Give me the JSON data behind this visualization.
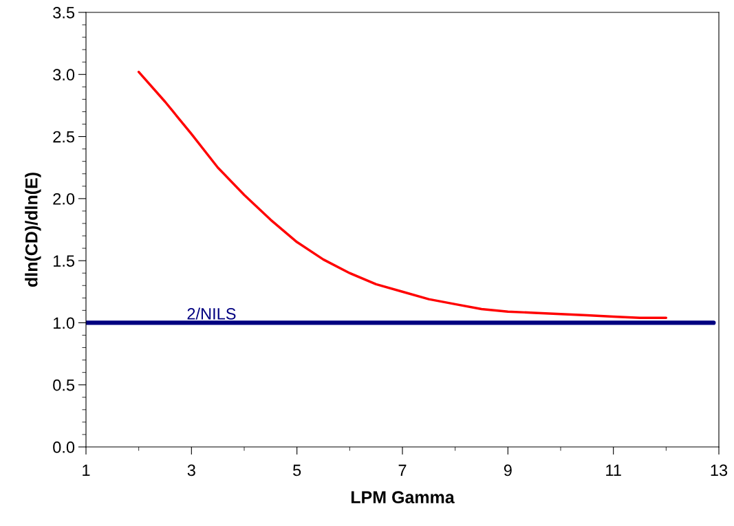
{
  "chart_data": {
    "type": "line",
    "xlabel": "LPM Gamma",
    "ylabel": "dln(CD)/dln(E)",
    "xlim": [
      1,
      13
    ],
    "ylim": [
      0,
      3.5
    ],
    "xticks": [
      1,
      {
        "value": 2,
        "label": null
      },
      3,
      {
        "value": 4,
        "label": null
      },
      5,
      {
        "value": 6,
        "label": null
      },
      7,
      {
        "value": 8,
        "label": null
      },
      9,
      {
        "value": 10,
        "label": null
      },
      11,
      {
        "value": 12,
        "label": null
      },
      13
    ],
    "yticks": [
      {
        "value": 0,
        "label": "0.0"
      },
      {
        "value": 0.1,
        "label": null
      },
      {
        "value": 0.2,
        "label": null
      },
      {
        "value": 0.3,
        "label": null
      },
      {
        "value": 0.4,
        "label": null
      },
      {
        "value": 0.5,
        "label": "0.5"
      },
      {
        "value": 0.6,
        "label": null
      },
      {
        "value": 0.7,
        "label": null
      },
      {
        "value": 0.8,
        "label": null
      },
      {
        "value": 0.9,
        "label": null
      },
      {
        "value": 1.0,
        "label": "1.0"
      },
      {
        "value": 1.1,
        "label": null
      },
      {
        "value": 1.2,
        "label": null
      },
      {
        "value": 1.3,
        "label": null
      },
      {
        "value": 1.4,
        "label": null
      },
      {
        "value": 1.5,
        "label": "1.5"
      },
      {
        "value": 1.6,
        "label": null
      },
      {
        "value": 1.7,
        "label": null
      },
      {
        "value": 1.8,
        "label": null
      },
      {
        "value": 1.9,
        "label": null
      },
      {
        "value": 2.0,
        "label": "2.0"
      },
      {
        "value": 2.1,
        "label": null
      },
      {
        "value": 2.2,
        "label": null
      },
      {
        "value": 2.3,
        "label": null
      },
      {
        "value": 2.4,
        "label": null
      },
      {
        "value": 2.5,
        "label": "2.5"
      },
      {
        "value": 2.6,
        "label": null
      },
      {
        "value": 2.7,
        "label": null
      },
      {
        "value": 2.8,
        "label": null
      },
      {
        "value": 2.9,
        "label": null
      },
      {
        "value": 3.0,
        "label": "3.0"
      },
      {
        "value": 3.1,
        "label": null
      },
      {
        "value": 3.2,
        "label": null
      },
      {
        "value": 3.3,
        "label": null
      },
      {
        "value": 3.4,
        "label": null
      },
      {
        "value": 3.5,
        "label": "3.5"
      }
    ],
    "grid": false,
    "legend": false,
    "marker": "none",
    "line_style": "solid",
    "series": [
      {
        "color": "#ff0000",
        "x": [
          2,
          2.5,
          3,
          3.5,
          4,
          4.5,
          5,
          5.5,
          6,
          6.5,
          7,
          7.5,
          8,
          8.5,
          9,
          9.5,
          10,
          10.5,
          11,
          11.5,
          12
        ],
        "values": [
          3.02,
          2.78,
          2.52,
          2.25,
          2.03,
          1.83,
          1.65,
          1.51,
          1.4,
          1.31,
          1.25,
          1.19,
          1.15,
          1.11,
          1.09,
          1.08,
          1.07,
          1.06,
          1.05,
          1.04,
          1.04
        ]
      },
      {
        "name": "2/NILS",
        "color": "#000080",
        "x": [
          1,
          12.9
        ],
        "values": [
          1,
          1
        ]
      }
    ]
  }
}
